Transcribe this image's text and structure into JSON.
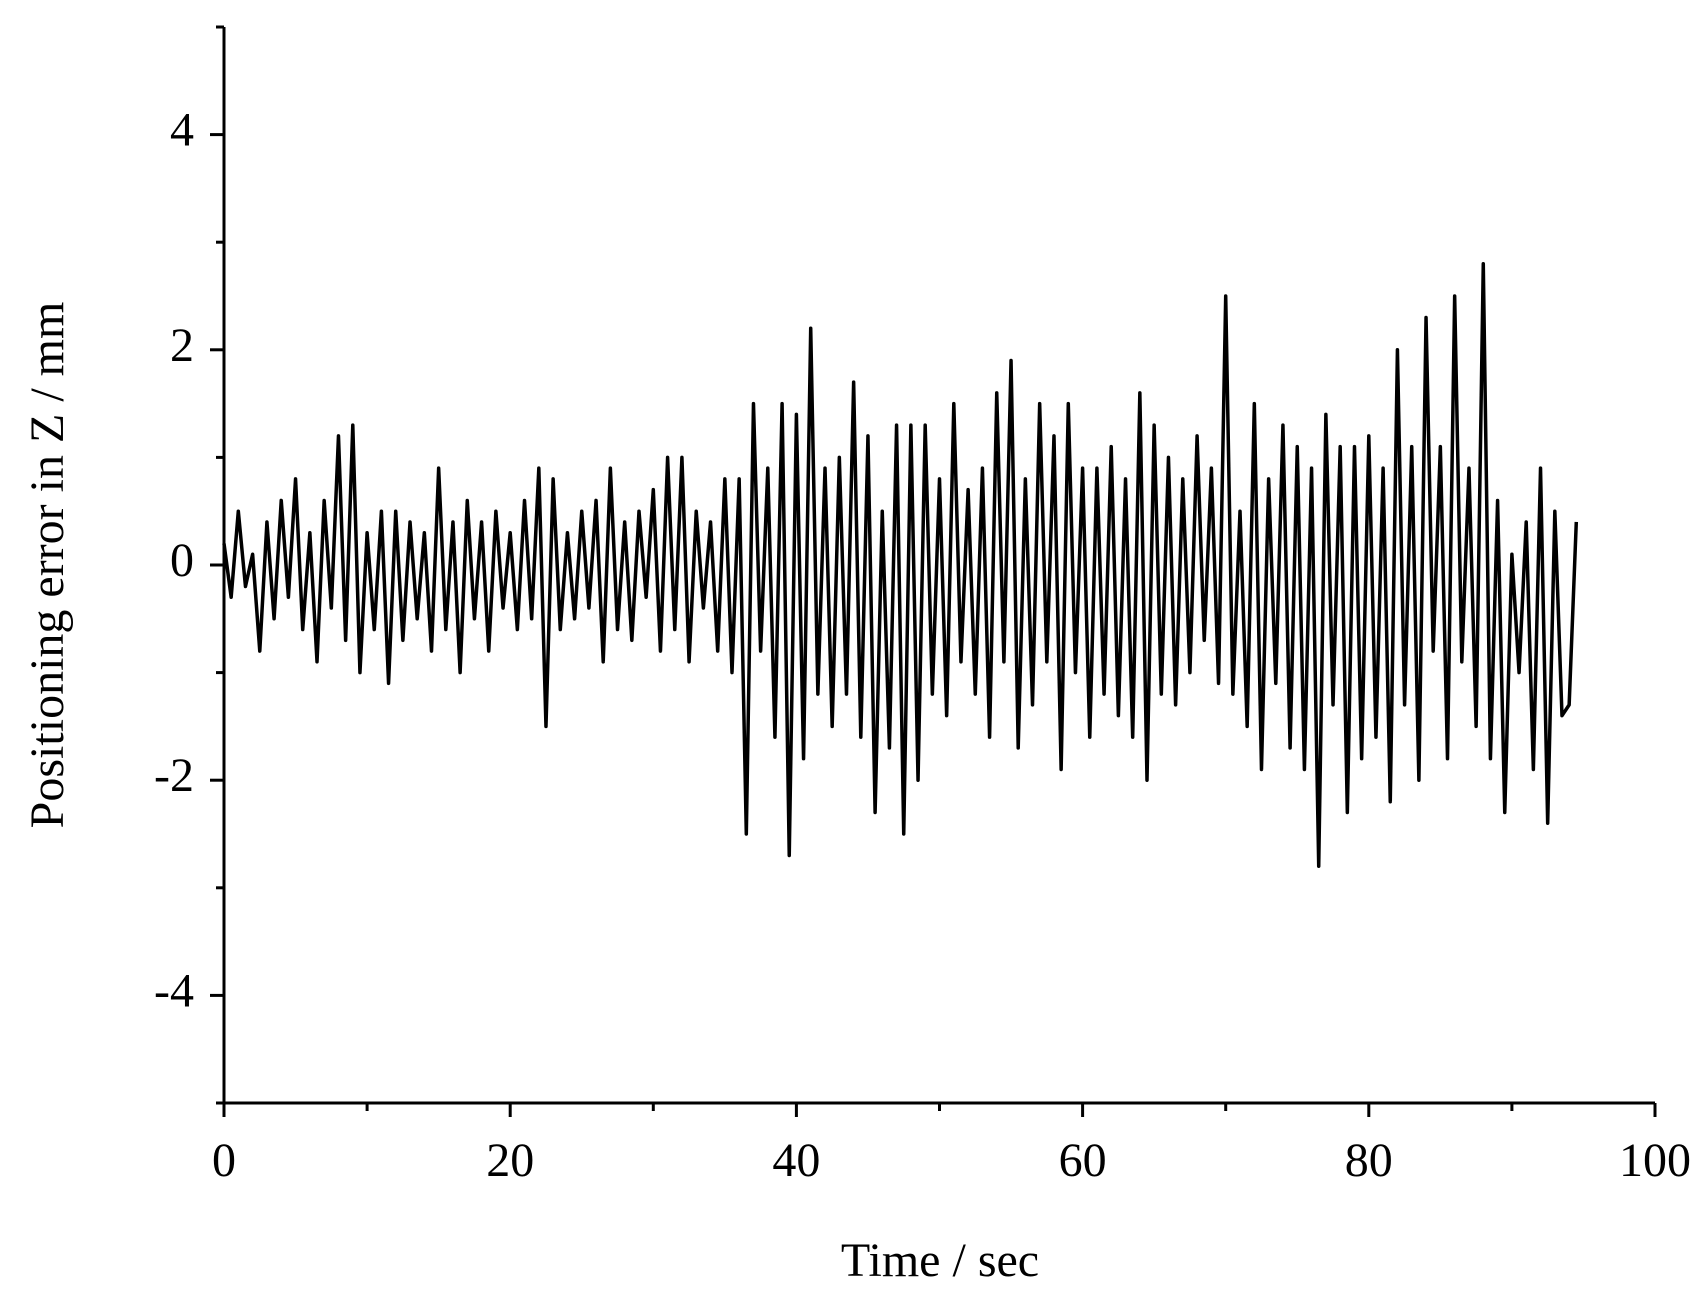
{
  "chart_data": {
    "type": "line",
    "xlabel": "Time / sec",
    "ylabel": "Positioning error in Z / mm",
    "xlim": [
      0,
      100
    ],
    "xticks": [
      0,
      20,
      40,
      60,
      80,
      100
    ],
    "xminorticks": [
      10,
      30,
      50,
      70,
      90
    ],
    "ylim": [
      -5,
      5
    ],
    "yticks": [
      -4,
      -2,
      0,
      2,
      4
    ],
    "yminorticks": [
      -5,
      -3,
      -1,
      1,
      3,
      5
    ],
    "color": "#000000",
    "x": [
      0,
      0.5,
      1,
      1.5,
      2,
      2.5,
      3,
      3.5,
      4,
      4.5,
      5,
      5.5,
      6,
      6.5,
      7,
      7.5,
      8,
      8.5,
      9,
      9.5,
      10,
      10.5,
      11,
      11.5,
      12,
      12.5,
      13,
      13.5,
      14,
      14.5,
      15,
      15.5,
      16,
      16.5,
      17,
      17.5,
      18,
      18.5,
      19,
      19.5,
      20,
      20.5,
      21,
      21.5,
      22,
      22.5,
      23,
      23.5,
      24,
      24.5,
      25,
      25.5,
      26,
      26.5,
      27,
      27.5,
      28,
      28.5,
      29,
      29.5,
      30,
      30.5,
      31,
      31.5,
      32,
      32.5,
      33,
      33.5,
      34,
      34.5,
      35,
      35.5,
      36,
      36.5,
      37,
      37.5,
      38,
      38.5,
      39,
      39.5,
      40,
      40.5,
      41,
      41.5,
      42,
      42.5,
      43,
      43.5,
      44,
      44.5,
      45,
      45.5,
      46,
      46.5,
      47,
      47.5,
      48,
      48.5,
      49,
      49.5,
      50,
      50.5,
      51,
      51.5,
      52,
      52.5,
      53,
      53.5,
      54,
      54.5,
      55,
      55.5,
      56,
      56.5,
      57,
      57.5,
      58,
      58.5,
      59,
      59.5,
      60,
      60.5,
      61,
      61.5,
      62,
      62.5,
      63,
      63.5,
      64,
      64.5,
      65,
      65.5,
      66,
      66.5,
      67,
      67.5,
      68,
      68.5,
      69,
      69.5,
      70,
      70.5,
      71,
      71.5,
      72,
      72.5,
      73,
      73.5,
      74,
      74.5,
      75,
      75.5,
      76,
      76.5,
      77,
      77.5,
      78,
      78.5,
      79,
      79.5,
      80,
      80.5,
      81,
      81.5,
      82,
      82.5,
      83,
      83.5,
      84,
      84.5,
      85,
      85.5,
      86,
      86.5,
      87,
      87.5,
      88,
      88.5,
      89,
      89.5,
      90,
      90.5,
      91,
      91.5,
      92,
      92.5,
      93,
      93.5,
      94,
      94.5
    ],
    "values": [
      0.2,
      -0.3,
      0.5,
      -0.2,
      0.1,
      -0.8,
      0.4,
      -0.5,
      0.6,
      -0.3,
      0.8,
      -0.6,
      0.3,
      -0.9,
      0.6,
      -0.4,
      1.2,
      -0.7,
      1.3,
      -1.0,
      0.3,
      -0.6,
      0.5,
      -1.1,
      0.5,
      -0.7,
      0.4,
      -0.5,
      0.3,
      -0.8,
      0.9,
      -0.6,
      0.4,
      -1.0,
      0.6,
      -0.5,
      0.4,
      -0.8,
      0.5,
      -0.4,
      0.3,
      -0.6,
      0.6,
      -0.5,
      0.9,
      -1.5,
      0.8,
      -0.6,
      0.3,
      -0.5,
      0.5,
      -0.4,
      0.6,
      -0.9,
      0.9,
      -0.6,
      0.4,
      -0.7,
      0.5,
      -0.3,
      0.7,
      -0.8,
      1.0,
      -0.6,
      1.0,
      -0.9,
      0.5,
      -0.4,
      0.4,
      -0.8,
      0.8,
      -1.0,
      0.8,
      -2.5,
      1.5,
      -0.8,
      0.9,
      -1.6,
      1.5,
      -2.7,
      1.4,
      -1.8,
      2.2,
      -1.2,
      0.9,
      -1.5,
      1.0,
      -1.2,
      1.7,
      -1.6,
      1.2,
      -2.3,
      0.5,
      -1.7,
      1.3,
      -2.5,
      1.3,
      -2.0,
      1.3,
      -1.2,
      0.8,
      -1.4,
      1.5,
      -0.9,
      0.7,
      -1.2,
      0.9,
      -1.6,
      1.6,
      -0.9,
      1.9,
      -1.7,
      0.8,
      -1.3,
      1.5,
      -0.9,
      1.2,
      -1.9,
      1.5,
      -1.0,
      0.9,
      -1.6,
      0.9,
      -1.2,
      1.1,
      -1.4,
      0.8,
      -1.6,
      1.6,
      -2.0,
      1.3,
      -1.2,
      1.0,
      -1.3,
      0.8,
      -1.0,
      1.2,
      -0.7,
      0.9,
      -1.1,
      2.5,
      -1.2,
      0.5,
      -1.5,
      1.5,
      -1.9,
      0.8,
      -1.1,
      1.3,
      -1.7,
      1.1,
      -1.9,
      0.9,
      -2.8,
      1.4,
      -1.3,
      1.1,
      -2.3,
      1.1,
      -1.8,
      1.2,
      -1.6,
      0.9,
      -2.2,
      2.0,
      -1.3,
      1.1,
      -2.0,
      2.3,
      -0.8,
      1.1,
      -1.8,
      2.5,
      -0.9,
      0.9,
      -1.5,
      2.8,
      -1.8,
      0.6,
      -2.3,
      0.1,
      -1.0,
      0.4,
      -1.9,
      0.9,
      -2.4,
      0.5,
      -1.4,
      -1.3,
      0.4
    ]
  }
}
